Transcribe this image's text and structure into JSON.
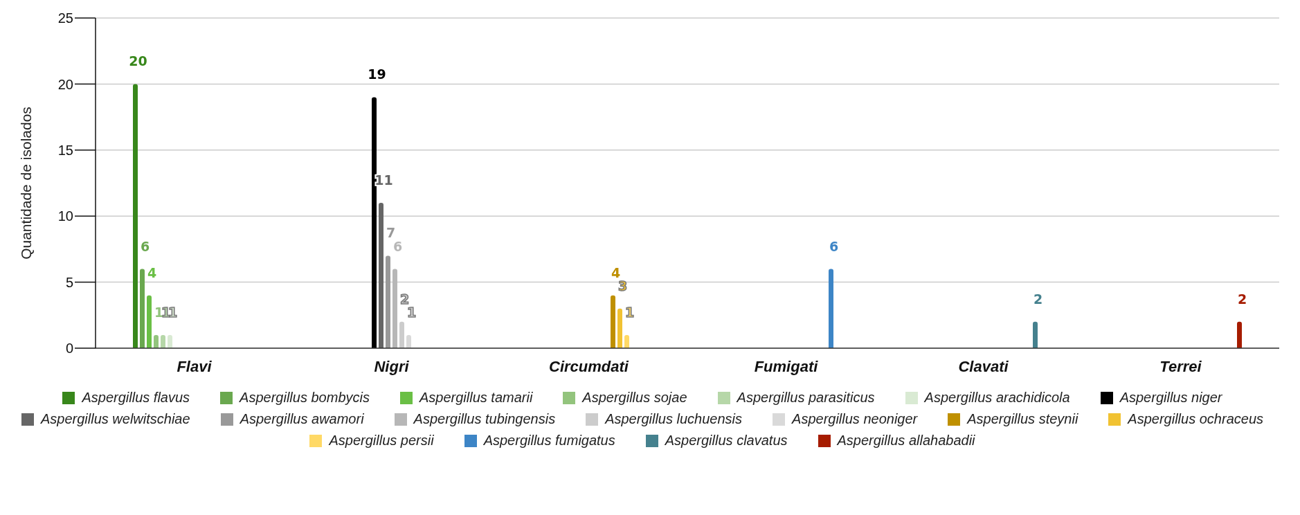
{
  "chart_data": {
    "type": "bar",
    "ylabel": "Quantidade de isolados",
    "categories": [
      "Flavi",
      "Nigri",
      "Circumdati",
      "Fumigati",
      "Clavati",
      "Terrei"
    ],
    "ylim": [
      0,
      25
    ],
    "yticks": [
      0,
      5,
      10,
      15,
      20,
      25
    ],
    "grid": "y",
    "legend": "bottom",
    "data_labels": true,
    "series": [
      {
        "name": "Aspergillus flavus",
        "color": "#38871b",
        "values": [
          20,
          null,
          null,
          null,
          null,
          null
        ]
      },
      {
        "name": "Aspergillus bombycis",
        "color": "#6aa84f",
        "values": [
          6,
          null,
          null,
          null,
          null,
          null
        ]
      },
      {
        "name": "Aspergillus tamarii",
        "color": "#6abf45",
        "values": [
          4,
          null,
          null,
          null,
          null,
          null
        ]
      },
      {
        "name": "Aspergillus sojae",
        "color": "#93c47d",
        "values": [
          1,
          null,
          null,
          null,
          null,
          null
        ]
      },
      {
        "name": "Aspergillus parasiticus",
        "color": "#b6d7a8",
        "values": [
          1,
          null,
          null,
          null,
          null,
          null
        ]
      },
      {
        "name": "Aspergillus arachidicola",
        "color": "#d9ead3",
        "values": [
          1,
          null,
          null,
          null,
          null,
          null
        ]
      },
      {
        "name": "Aspergillus niger",
        "color": "#000000",
        "values": [
          null,
          19,
          null,
          null,
          null,
          null
        ]
      },
      {
        "name": "Aspergillus welwitschiae",
        "color": "#666666",
        "values": [
          null,
          11,
          null,
          null,
          null,
          null
        ]
      },
      {
        "name": "Aspergillus awamori",
        "color": "#999999",
        "values": [
          null,
          7,
          null,
          null,
          null,
          null
        ]
      },
      {
        "name": "Aspergillus tubingensis",
        "color": "#b7b7b7",
        "values": [
          null,
          6,
          null,
          null,
          null,
          null
        ]
      },
      {
        "name": "Aspergillus luchuensis",
        "color": "#cccccc",
        "values": [
          null,
          2,
          null,
          null,
          null,
          null
        ]
      },
      {
        "name": "Aspergillus neoniger",
        "color": "#d9d9d9",
        "values": [
          null,
          1,
          null,
          null,
          null,
          null
        ]
      },
      {
        "name": "Aspergillus steynii",
        "color": "#bf9000",
        "values": [
          null,
          null,
          4,
          null,
          null,
          null
        ]
      },
      {
        "name": "Aspergillus ochraceus",
        "color": "#f1c232",
        "values": [
          null,
          null,
          3,
          null,
          null,
          null
        ]
      },
      {
        "name": "Aspergillus persii",
        "color": "#ffd966",
        "values": [
          null,
          null,
          1,
          null,
          null,
          null
        ]
      },
      {
        "name": "Aspergillus fumigatus",
        "color": "#3d85c6",
        "values": [
          null,
          null,
          null,
          6,
          null,
          null
        ]
      },
      {
        "name": "Aspergillus clavatus",
        "color": "#45818e",
        "values": [
          null,
          null,
          null,
          null,
          2,
          null
        ]
      },
      {
        "name": "Aspergillus allahabadii",
        "color": "#a61c00",
        "values": [
          null,
          null,
          null,
          null,
          null,
          2
        ]
      }
    ]
  }
}
